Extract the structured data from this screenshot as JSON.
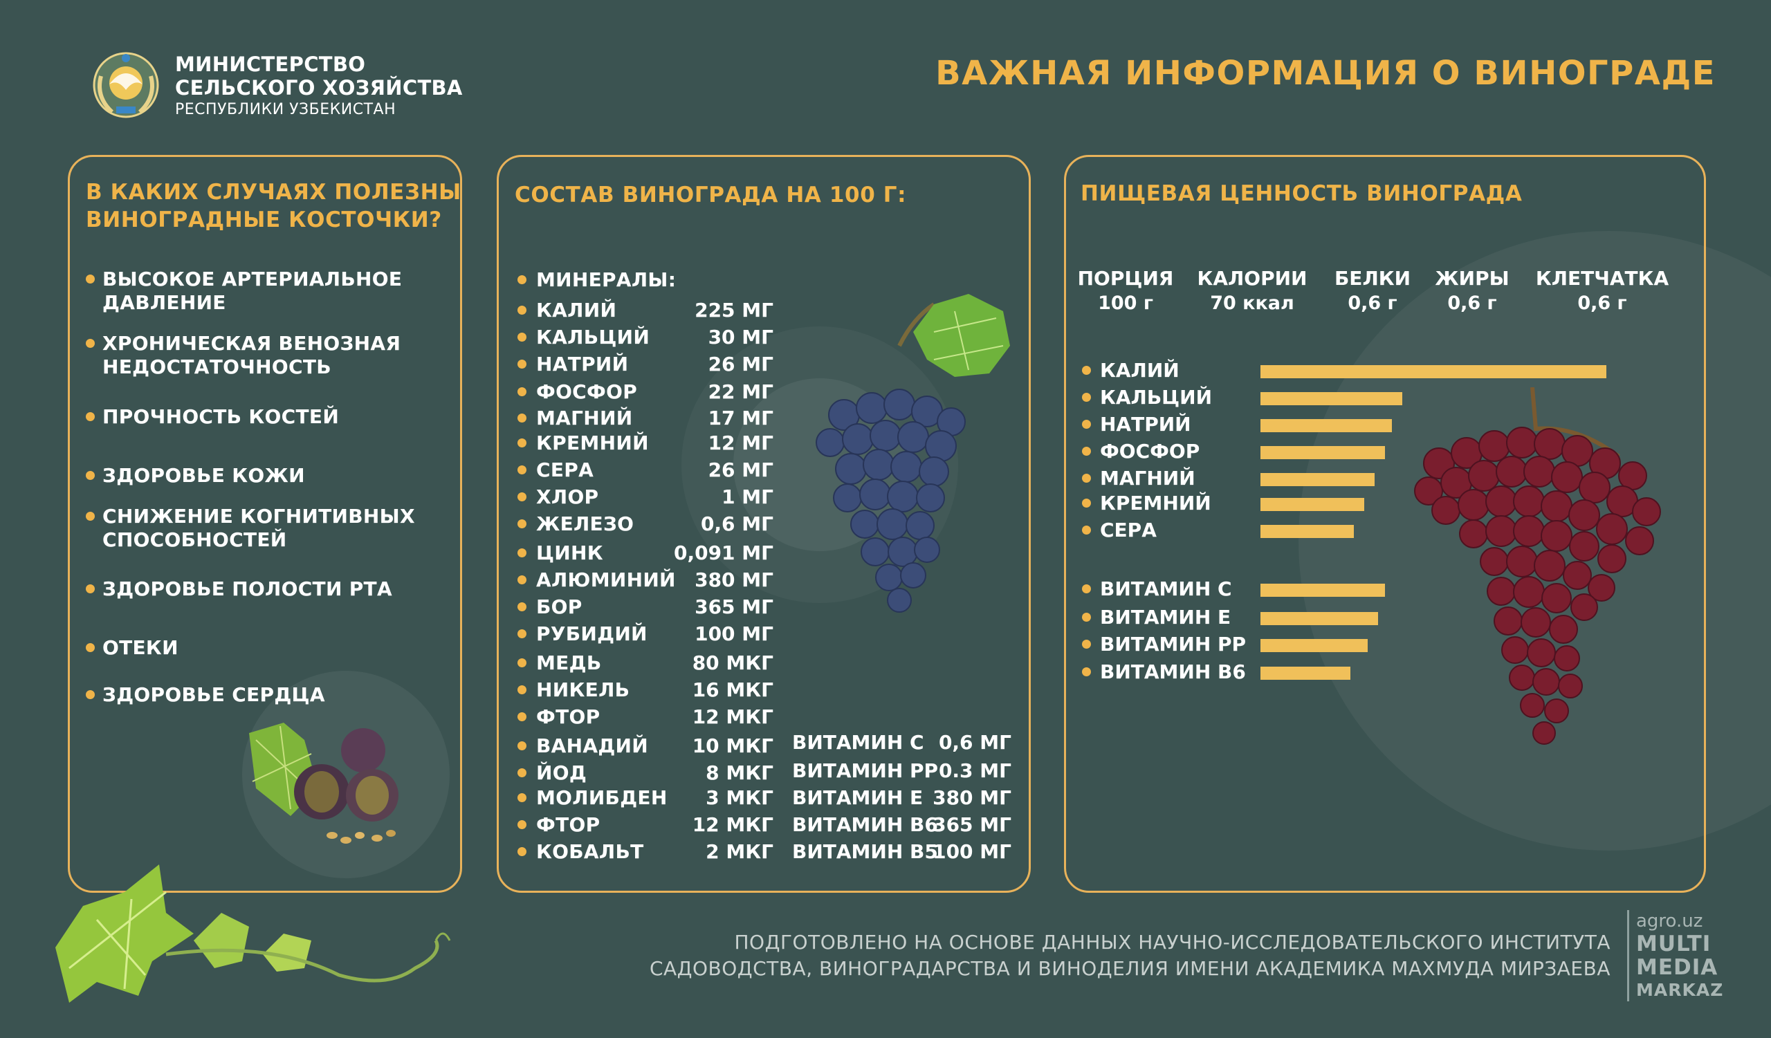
{
  "header": {
    "ministry_line1": "МИНИСТЕРСТВО",
    "ministry_line2": "СЕЛЬСКОГО ХОЗЯЙСТВА",
    "ministry_line3": "РЕСПУБЛИКИ УЗБЕКИСТАН",
    "title": "ВАЖНАЯ ИНФОРМАЦИЯ О ВИНОГРАДЕ"
  },
  "seeds_panel": {
    "title_line1": "В КАКИХ СЛУЧАЯХ ПОЛЕЗНЫ",
    "title_line2": "ВИНОГРАДНЫЕ КОСТОЧКИ?",
    "items": [
      {
        "line1": "ВЫСОКОЕ АРТЕРИАЛЬНОЕ",
        "line2": "ДАВЛЕНИЕ"
      },
      {
        "line1": "ХРОНИЧЕСКАЯ ВЕНОЗНАЯ",
        "line2": "НЕДОСТАТОЧНОСТЬ"
      },
      {
        "line1": "ПРОЧНОСТЬ КОСТЕЙ",
        "line2": ""
      },
      {
        "line1": "ЗДОРОВЬЕ КОЖИ",
        "line2": ""
      },
      {
        "line1": "СНИЖЕНИЕ КОГНИТИВНЫХ",
        "line2": "СПОСОБНОСТЕЙ"
      },
      {
        "line1": "ЗДОРОВЬЕ ПОЛОСТИ РТА",
        "line2": ""
      },
      {
        "line1": "ОТЕКИ",
        "line2": ""
      },
      {
        "line1": "ЗДОРОВЬЕ СЕРДЦА",
        "line2": ""
      }
    ]
  },
  "composition_panel": {
    "title": "СОСТАВ ВИНОГРАДА НА 100 Г:",
    "minerals_header": "МИНЕРАЛЫ:",
    "minerals": [
      {
        "name": "КАЛИЙ",
        "value": "225 МГ"
      },
      {
        "name": "КАЛЬЦИЙ",
        "value": "30 МГ"
      },
      {
        "name": "НАТРИЙ",
        "value": "26 МГ"
      },
      {
        "name": "ФОСФОР",
        "value": "22 МГ"
      },
      {
        "name": "МАГНИЙ",
        "value": "17 МГ"
      },
      {
        "name": "КРЕМНИЙ",
        "value": "12 МГ"
      },
      {
        "name": "СЕРА",
        "value": "26 МГ"
      },
      {
        "name": "ХЛОР",
        "value": "1 МГ"
      },
      {
        "name": "ЖЕЛЕЗО",
        "value": "0,6 МГ"
      },
      {
        "name": "ЦИНК",
        "value": "0,091 МГ"
      },
      {
        "name": "АЛЮМИНИЙ",
        "value": "380 МГ"
      },
      {
        "name": "БОР",
        "value": "365 МГ"
      },
      {
        "name": "РУБИДИЙ",
        "value": "100 МГ"
      },
      {
        "name": "МЕДЬ",
        "value": "80 МКГ"
      },
      {
        "name": "НИКЕЛЬ",
        "value": "16 МКГ"
      },
      {
        "name": "ФТОР",
        "value": "12 МКГ"
      },
      {
        "name": "ВАНАДИЙ",
        "value": "10 МКГ"
      },
      {
        "name": "ЙОД",
        "value": "8 МКГ"
      },
      {
        "name": "МОЛИБДЕН",
        "value": "3 МКГ"
      },
      {
        "name": "ФТОР",
        "value": "12 МКГ"
      },
      {
        "name": "КОБАЛЬТ",
        "value": "2 МКГ"
      }
    ],
    "vitamins": [
      {
        "name": "ВИТАМИН С",
        "value": "0,6 МГ"
      },
      {
        "name": "ВИТАМИН РР",
        "value": "0.3 МГ"
      },
      {
        "name": "ВИТАМИН Е",
        "value": "380 МГ"
      },
      {
        "name": "ВИТАМИН В6",
        "value": "365 МГ"
      },
      {
        "name": "ВИТАМИН В5",
        "value": "100 МГ"
      }
    ]
  },
  "nutrition_panel": {
    "title": "ПИЩЕВАЯ ЦЕННОСТЬ ВИНОГРАДА",
    "facts": [
      {
        "label": "ПОРЦИЯ",
        "value": "100 г"
      },
      {
        "label": "КАЛОРИИ",
        "value": "70 ккал"
      },
      {
        "label": "БЕЛКИ",
        "value": "0,6 г"
      },
      {
        "label": "ЖИРЫ",
        "value": "0,6 г"
      },
      {
        "label": "КЛЕТЧАТКА",
        "value": "0,6 г"
      }
    ],
    "mineral_bars": [
      {
        "name": "КАЛИЙ",
        "level": 1.0
      },
      {
        "name": "КАЛЬЦИЙ",
        "level": 0.41
      },
      {
        "name": "НАТРИЙ",
        "level": 0.38
      },
      {
        "name": "ФОСФОР",
        "level": 0.36
      },
      {
        "name": "МАГНИЙ",
        "level": 0.33
      },
      {
        "name": "КРЕМНИЙ",
        "level": 0.3
      },
      {
        "name": "СЕРА",
        "level": 0.27
      }
    ],
    "vitamin_bars": [
      {
        "name": "ВИТАМИН С",
        "level": 0.36
      },
      {
        "name": "ВИТАМИН Е",
        "level": 0.34
      },
      {
        "name": "ВИТАМИН РР",
        "level": 0.31
      },
      {
        "name": "ВИТАМИН В6",
        "level": 0.26
      }
    ]
  },
  "footer": {
    "line1": "ПОДГОТОВЛЕНО НА ОСНОВЕ ДАННЫХ НАУЧНО-ИССЛЕДОВАТЕЛЬСКОГО ИНСТИТУТА",
    "line2": "САДОВОДСТВА, ВИНОГРАДАРСТВА И ВИНОДЕЛИЯ ИМЕНИ АКАДЕМИКА МАХМУДА МИРЗАЕВА"
  },
  "brand": {
    "site": "agro.uz",
    "line1": "MULTI",
    "line2": "MEDIA",
    "line3": "MARKAZ"
  },
  "colors": {
    "background": "#3b5351",
    "accent": "#f0b449",
    "bar": "#f0c05a"
  }
}
